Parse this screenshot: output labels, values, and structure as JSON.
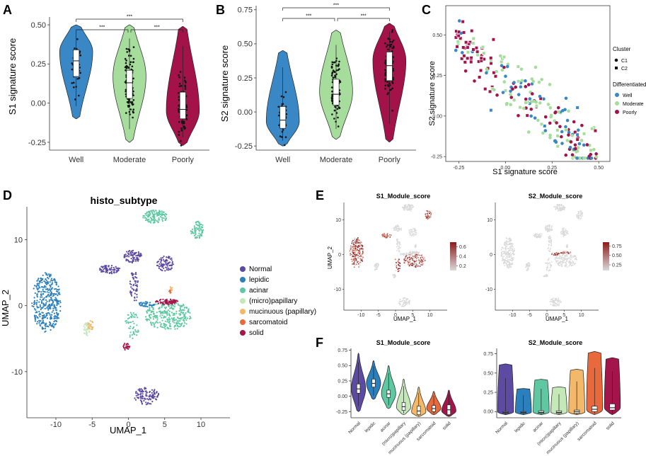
{
  "panel_labels": [
    "A",
    "B",
    "C",
    "D",
    "E",
    "F"
  ],
  "colors": {
    "well": "#3a87c6",
    "moderate": "#a6dd9c",
    "poorly": "#a3134a",
    "Normal": "#5c4aa3",
    "lepidic": "#2b7fbd",
    "acinar": "#5fc8a2",
    "(micro)papillary": "#c5e8b8",
    "mucinuous (papillary)": "#f4b86a",
    "sarcomatoid": "#e86a3c",
    "solid": "#a3154b",
    "feat_low": "#d9d9d9",
    "feat_high": "#8b1a1a"
  },
  "chart_data": [
    {
      "id": "A",
      "type": "violin",
      "ylabel": "S1 signature score",
      "ylim": [
        -0.3,
        0.55
      ],
      "yticks": [
        -0.25,
        0.0,
        0.25,
        0.5
      ],
      "ytick_labels": [
        "-0.25",
        "0.00",
        "0.25",
        "0.50"
      ],
      "categories": [
        "Well",
        "Moderate",
        "Poorly"
      ],
      "groups": [
        {
          "name": "Well",
          "min": -0.1,
          "q1": 0.17,
          "median": 0.27,
          "q3": 0.34,
          "max": 0.5,
          "peak": 0.33,
          "n": 40
        },
        {
          "name": "Moderate",
          "min": -0.25,
          "q1": 0.03,
          "median": 0.13,
          "q3": 0.21,
          "max": 0.5,
          "peak": 0.17,
          "n": 110
        },
        {
          "name": "Poorly",
          "min": -0.27,
          "q1": -0.1,
          "median": -0.04,
          "q3": 0.07,
          "max": 0.49,
          "peak": -0.05,
          "n": 90
        }
      ],
      "significance": [
        {
          "from": "Well",
          "to": "Poorly",
          "label": "***"
        },
        {
          "from": "Well",
          "to": "Moderate",
          "label": "***"
        },
        {
          "from": "Moderate",
          "to": "Poorly",
          "label": "***"
        }
      ]
    },
    {
      "id": "B",
      "type": "violin",
      "ylabel": "S2 signature score",
      "ylim": [
        -0.28,
        0.78
      ],
      "yticks": [
        -0.25,
        0.0,
        0.25,
        0.5,
        0.75
      ],
      "ytick_labels": [
        "-0.25",
        "0.00",
        "0.25",
        "0.50",
        "0.75"
      ],
      "categories": [
        "Well",
        "Moderate",
        "Poorly"
      ],
      "groups": [
        {
          "name": "Well",
          "min": -0.25,
          "q1": -0.12,
          "median": -0.06,
          "q3": 0.04,
          "max": 0.45,
          "peak": -0.07,
          "n": 40
        },
        {
          "name": "Moderate",
          "min": -0.2,
          "q1": 0.05,
          "median": 0.13,
          "q3": 0.24,
          "max": 0.6,
          "peak": 0.15,
          "n": 110
        },
        {
          "name": "Poorly",
          "min": -0.22,
          "q1": 0.23,
          "median": 0.34,
          "q3": 0.44,
          "max": 0.65,
          "peak": 0.38,
          "n": 90
        }
      ],
      "significance": [
        {
          "from": "Well",
          "to": "Poorly",
          "label": "***"
        },
        {
          "from": "Well",
          "to": "Moderate",
          "label": "***"
        },
        {
          "from": "Moderate",
          "to": "Poorly",
          "label": "***"
        }
      ]
    },
    {
      "id": "C",
      "type": "scatter",
      "xlabel": "S1 signature score",
      "ylabel": "S2 signature score",
      "xlim": [
        -0.32,
        0.56
      ],
      "ylim": [
        -0.28,
        0.68
      ],
      "xticks": [
        -0.25,
        0.0,
        0.25,
        0.5
      ],
      "xtick_labels": [
        "-0.25",
        "0.00",
        "0.25",
        "0.50"
      ],
      "yticks": [
        -0.25,
        0.0,
        0.25,
        0.5
      ],
      "ytick_labels": [
        "-0.25",
        "0.00",
        "0.25",
        "0.50"
      ],
      "legend_cluster_title": "Cluster",
      "clusters": [
        "C1",
        "C2"
      ],
      "legend_diff_title": "Differentiated",
      "diff": [
        "Well",
        "Moderate",
        "Poorly"
      ],
      "trend": {
        "slope": -1.0,
        "intercept": 0.22,
        "spread": 0.09,
        "n": 240
      }
    },
    {
      "id": "D",
      "type": "umap",
      "title": "histo_subtype",
      "xlabel": "UMAP_1",
      "ylabel": "UMAP_2",
      "xlim": [
        -14,
        14
      ],
      "ylim": [
        -17,
        15
      ],
      "xticks": [
        -10,
        -5,
        0,
        5,
        10
      ],
      "xtick_labels": [
        "-10",
        "-5",
        "0",
        "5",
        "10"
      ],
      "yticks": [
        -10,
        0,
        10
      ],
      "ytick_labels": [
        "-10",
        "0",
        "10"
      ],
      "legend": [
        "Normal",
        "lepidic",
        "acinar",
        "(micro)papillary",
        "mucinuous (papillary)",
        "sarcomatoid",
        "solid"
      ],
      "clusters": [
        {
          "cat": "acinar",
          "cx": 3.7,
          "cy": 13.5,
          "rx": 1.7,
          "ry": 1.0,
          "n": 120
        },
        {
          "cat": "acinar",
          "cx": 9.5,
          "cy": 11.5,
          "rx": 0.9,
          "ry": 1.3,
          "n": 70
        },
        {
          "cat": "lepidic",
          "cx": -11.3,
          "cy": 0.5,
          "rx": 2.0,
          "ry": 4.5,
          "n": 380
        },
        {
          "cat": "acinar",
          "cx": 5.5,
          "cy": -1.5,
          "rx": 3.2,
          "ry": 2.2,
          "n": 300
        },
        {
          "cat": "Normal",
          "cx": -2.6,
          "cy": 5.5,
          "rx": 1.4,
          "ry": 0.7,
          "n": 70
        },
        {
          "cat": "Normal",
          "cx": 0.6,
          "cy": 7.5,
          "rx": 1.2,
          "ry": 1.0,
          "n": 80
        },
        {
          "cat": "Normal",
          "cx": 5.1,
          "cy": 6.4,
          "rx": 1.2,
          "ry": 1.2,
          "n": 80
        },
        {
          "cat": "Normal",
          "cx": 2.5,
          "cy": -13.7,
          "rx": 1.7,
          "ry": 1.3,
          "n": 110
        },
        {
          "cat": "Normal",
          "cx": 0.8,
          "cy": 3.0,
          "rx": 0.6,
          "ry": 2.5,
          "n": 60
        },
        {
          "cat": "acinar",
          "cx": 0.5,
          "cy": -3.0,
          "rx": 1.0,
          "ry": 2.0,
          "n": 50
        },
        {
          "cat": "lepidic",
          "cx": 2.4,
          "cy": 0.2,
          "rx": 1.2,
          "ry": 0.4,
          "n": 40
        },
        {
          "cat": "solid",
          "cx": 5.3,
          "cy": 0.6,
          "rx": 1.6,
          "ry": 0.4,
          "n": 70
        },
        {
          "cat": "solid",
          "cx": -0.4,
          "cy": -6.2,
          "rx": 0.6,
          "ry": 0.5,
          "n": 25
        },
        {
          "cat": "(micro)papillary",
          "cx": -5.7,
          "cy": -3.6,
          "rx": 0.5,
          "ry": 1.1,
          "n": 40
        },
        {
          "cat": "mucinuous (papillary)",
          "cx": -5.2,
          "cy": -3.0,
          "rx": 0.4,
          "ry": 0.7,
          "n": 20
        },
        {
          "cat": "sarcomatoid",
          "cx": 5.8,
          "cy": 2.3,
          "rx": 0.2,
          "ry": 0.4,
          "n": 10
        },
        {
          "cat": "mucinuous (papillary)",
          "cx": 5.9,
          "cy": 2.6,
          "rx": 0.2,
          "ry": 0.3,
          "n": 8
        }
      ]
    },
    {
      "id": "E1",
      "type": "umap_feature",
      "title": "S1_Module_score",
      "xlabel": "UMAP_1",
      "ylabel": "UMAP_2",
      "xlim": [
        -15,
        15
      ],
      "ylim": [
        -16,
        15
      ],
      "xticks": [
        -10,
        -5,
        0,
        5,
        10
      ],
      "xtick_labels": [
        "-10",
        "-5",
        "0",
        "5",
        "10"
      ],
      "yticks": [
        -10,
        0,
        10
      ],
      "ytick_labels": [
        "-10",
        "0",
        "10"
      ],
      "colorbar_range": [
        0.1,
        0.7
      ],
      "colorbar_ticks": [
        0.2,
        0.4,
        0.6
      ],
      "colorbar_labels": [
        "0.2",
        "0.4",
        "0.6"
      ],
      "hot_clusters": [
        1,
        2,
        3,
        4,
        9
      ]
    },
    {
      "id": "E2",
      "type": "umap_feature",
      "title": "S2_Module_score",
      "xlabel": "UMAP_1",
      "ylabel": "",
      "xlim": [
        -15,
        15
      ],
      "ylim": [
        -16,
        15
      ],
      "xticks": [
        -10,
        -5,
        0,
        5,
        10
      ],
      "xtick_labels": [
        "-10",
        "-5",
        "0",
        "5",
        "10"
      ],
      "yticks": [
        -10,
        0,
        10
      ],
      "ytick_labels": [
        "-10",
        "0",
        "10"
      ],
      "colorbar_range": [
        0.1,
        0.85
      ],
      "colorbar_ticks": [
        0.25,
        0.5,
        0.75
      ],
      "colorbar_labels": [
        "0.25",
        "0.50",
        "0.75"
      ],
      "hot_clusters": [
        10,
        11
      ]
    },
    {
      "id": "F1",
      "type": "violin",
      "title": "S1_Module_score",
      "ylim": [
        -0.35,
        0.78
      ],
      "yticks": [
        -0.25,
        0.0,
        0.25,
        0.5,
        0.75
      ],
      "ytick_labels": [
        "-0.25",
        "0.00",
        "0.25",
        "0.50",
        "0.75"
      ],
      "categories": [
        "Normal",
        "lepidic",
        "acinar",
        "(micro)papillary",
        "mucinuous (papillary)",
        "sarcomatoid",
        "solid"
      ],
      "groups": [
        {
          "name": "Normal",
          "min": -0.25,
          "q1": 0.05,
          "median": 0.12,
          "q3": 0.2,
          "max": 0.7,
          "peak": 0.12
        },
        {
          "name": "lepidic",
          "min": -0.05,
          "q1": 0.15,
          "median": 0.21,
          "q3": 0.28,
          "max": 0.58,
          "peak": 0.21
        },
        {
          "name": "acinar",
          "min": -0.2,
          "q1": -0.02,
          "median": 0.04,
          "q3": 0.1,
          "max": 0.5,
          "peak": 0.04
        },
        {
          "name": "(micro)papillary",
          "min": -0.3,
          "q1": -0.23,
          "median": -0.17,
          "q3": -0.1,
          "max": 0.28,
          "peak": -0.18
        },
        {
          "name": "mucinuous (papillary)",
          "min": -0.33,
          "q1": -0.3,
          "median": -0.24,
          "q3": -0.16,
          "max": 0.15,
          "peak": -0.26
        },
        {
          "name": "sarcomatoid",
          "min": -0.3,
          "q1": -0.25,
          "median": -0.2,
          "q3": -0.15,
          "max": 0.08,
          "peak": -0.2
        },
        {
          "name": "solid",
          "min": -0.33,
          "q1": -0.3,
          "median": -0.22,
          "q3": -0.14,
          "max": 0.1,
          "peak": -0.24
        }
      ]
    },
    {
      "id": "F2",
      "type": "violin",
      "title": "S2_Module_score",
      "ylim": [
        -0.08,
        0.82
      ],
      "yticks": [
        0.0,
        0.25,
        0.5,
        0.75
      ],
      "ytick_labels": [
        "0.00",
        "0.25",
        "0.50",
        "0.75"
      ],
      "categories": [
        "Normal",
        "lepidic",
        "acinar",
        "(micro)papillary",
        "mucinuous (papillary)",
        "sarcomatoid",
        "solid"
      ],
      "groups": [
        {
          "name": "Normal",
          "min": -0.04,
          "q1": -0.02,
          "median": -0.01,
          "q3": 0.0,
          "max": 0.62,
          "peak": -0.01
        },
        {
          "name": "lepidic",
          "min": -0.04,
          "q1": -0.02,
          "median": -0.01,
          "q3": 0.0,
          "max": 0.3,
          "peak": -0.01
        },
        {
          "name": "acinar",
          "min": -0.04,
          "q1": -0.02,
          "median": -0.01,
          "q3": 0.01,
          "max": 0.42,
          "peak": -0.01
        },
        {
          "name": "(micro)papillary",
          "min": -0.04,
          "q1": -0.02,
          "median": -0.01,
          "q3": 0.01,
          "max": 0.32,
          "peak": -0.01
        },
        {
          "name": "mucinuous (papillary)",
          "min": -0.04,
          "q1": -0.02,
          "median": 0.0,
          "q3": 0.02,
          "max": 0.55,
          "peak": -0.01
        },
        {
          "name": "sarcomatoid",
          "min": -0.04,
          "q1": 0.0,
          "median": 0.03,
          "q3": 0.07,
          "max": 0.78,
          "peak": 0.02
        },
        {
          "name": "solid",
          "min": -0.04,
          "q1": 0.02,
          "median": 0.05,
          "q3": 0.1,
          "max": 0.7,
          "peak": 0.05
        }
      ]
    }
  ]
}
